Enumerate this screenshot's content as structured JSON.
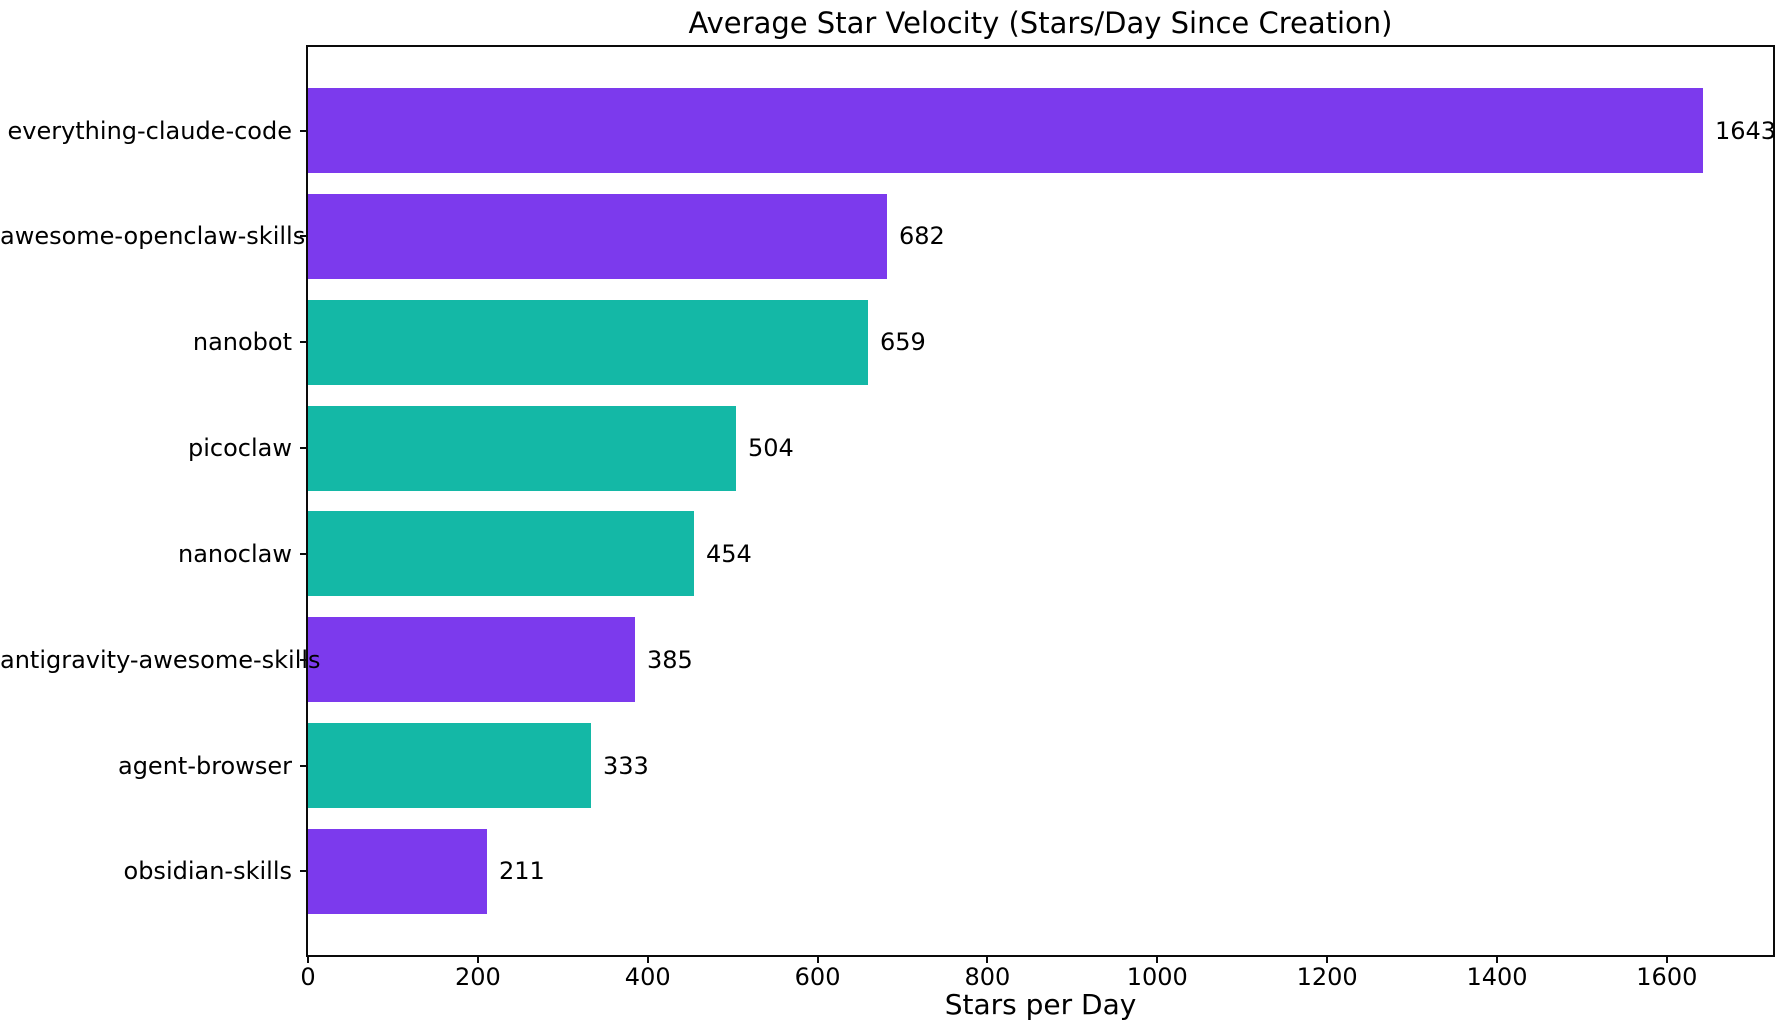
{
  "chart_data": {
    "type": "bar",
    "orientation": "horizontal",
    "title": "Average Star Velocity (Stars/Day Since Creation)",
    "xlabel": "Stars per Day",
    "ylabel": "",
    "categories": [
      "everything-claude-code",
      "awesome-openclaw-skills",
      "nanobot",
      "picoclaw",
      "nanoclaw",
      "antigravity-awesome-skills",
      "agent-browser",
      "obsidian-skills"
    ],
    "values": [
      1643,
      682,
      659,
      504,
      454,
      385,
      333,
      211
    ],
    "value_labels": [
      "1643",
      "682",
      "659",
      "504",
      "454",
      "385",
      "333",
      "211"
    ],
    "bar_colors": [
      "#7C3AED",
      "#7C3AED",
      "#14B8A6",
      "#14B8A6",
      "#14B8A6",
      "#7C3AED",
      "#14B8A6",
      "#7C3AED"
    ],
    "colors": {
      "purple": "#7C3AED",
      "teal": "#14B8A6",
      "text": "#000000",
      "spine": "#0a0a0a",
      "background": "#ffffff"
    },
    "xlim": [
      0,
      1725
    ],
    "xticks": [
      0,
      200,
      400,
      600,
      800,
      1000,
      1200,
      1400,
      1600
    ],
    "xtick_labels": [
      "0",
      "200",
      "400",
      "600",
      "800",
      "1000",
      "1200",
      "1400",
      "1600"
    ],
    "grid": false,
    "legend": null
  }
}
